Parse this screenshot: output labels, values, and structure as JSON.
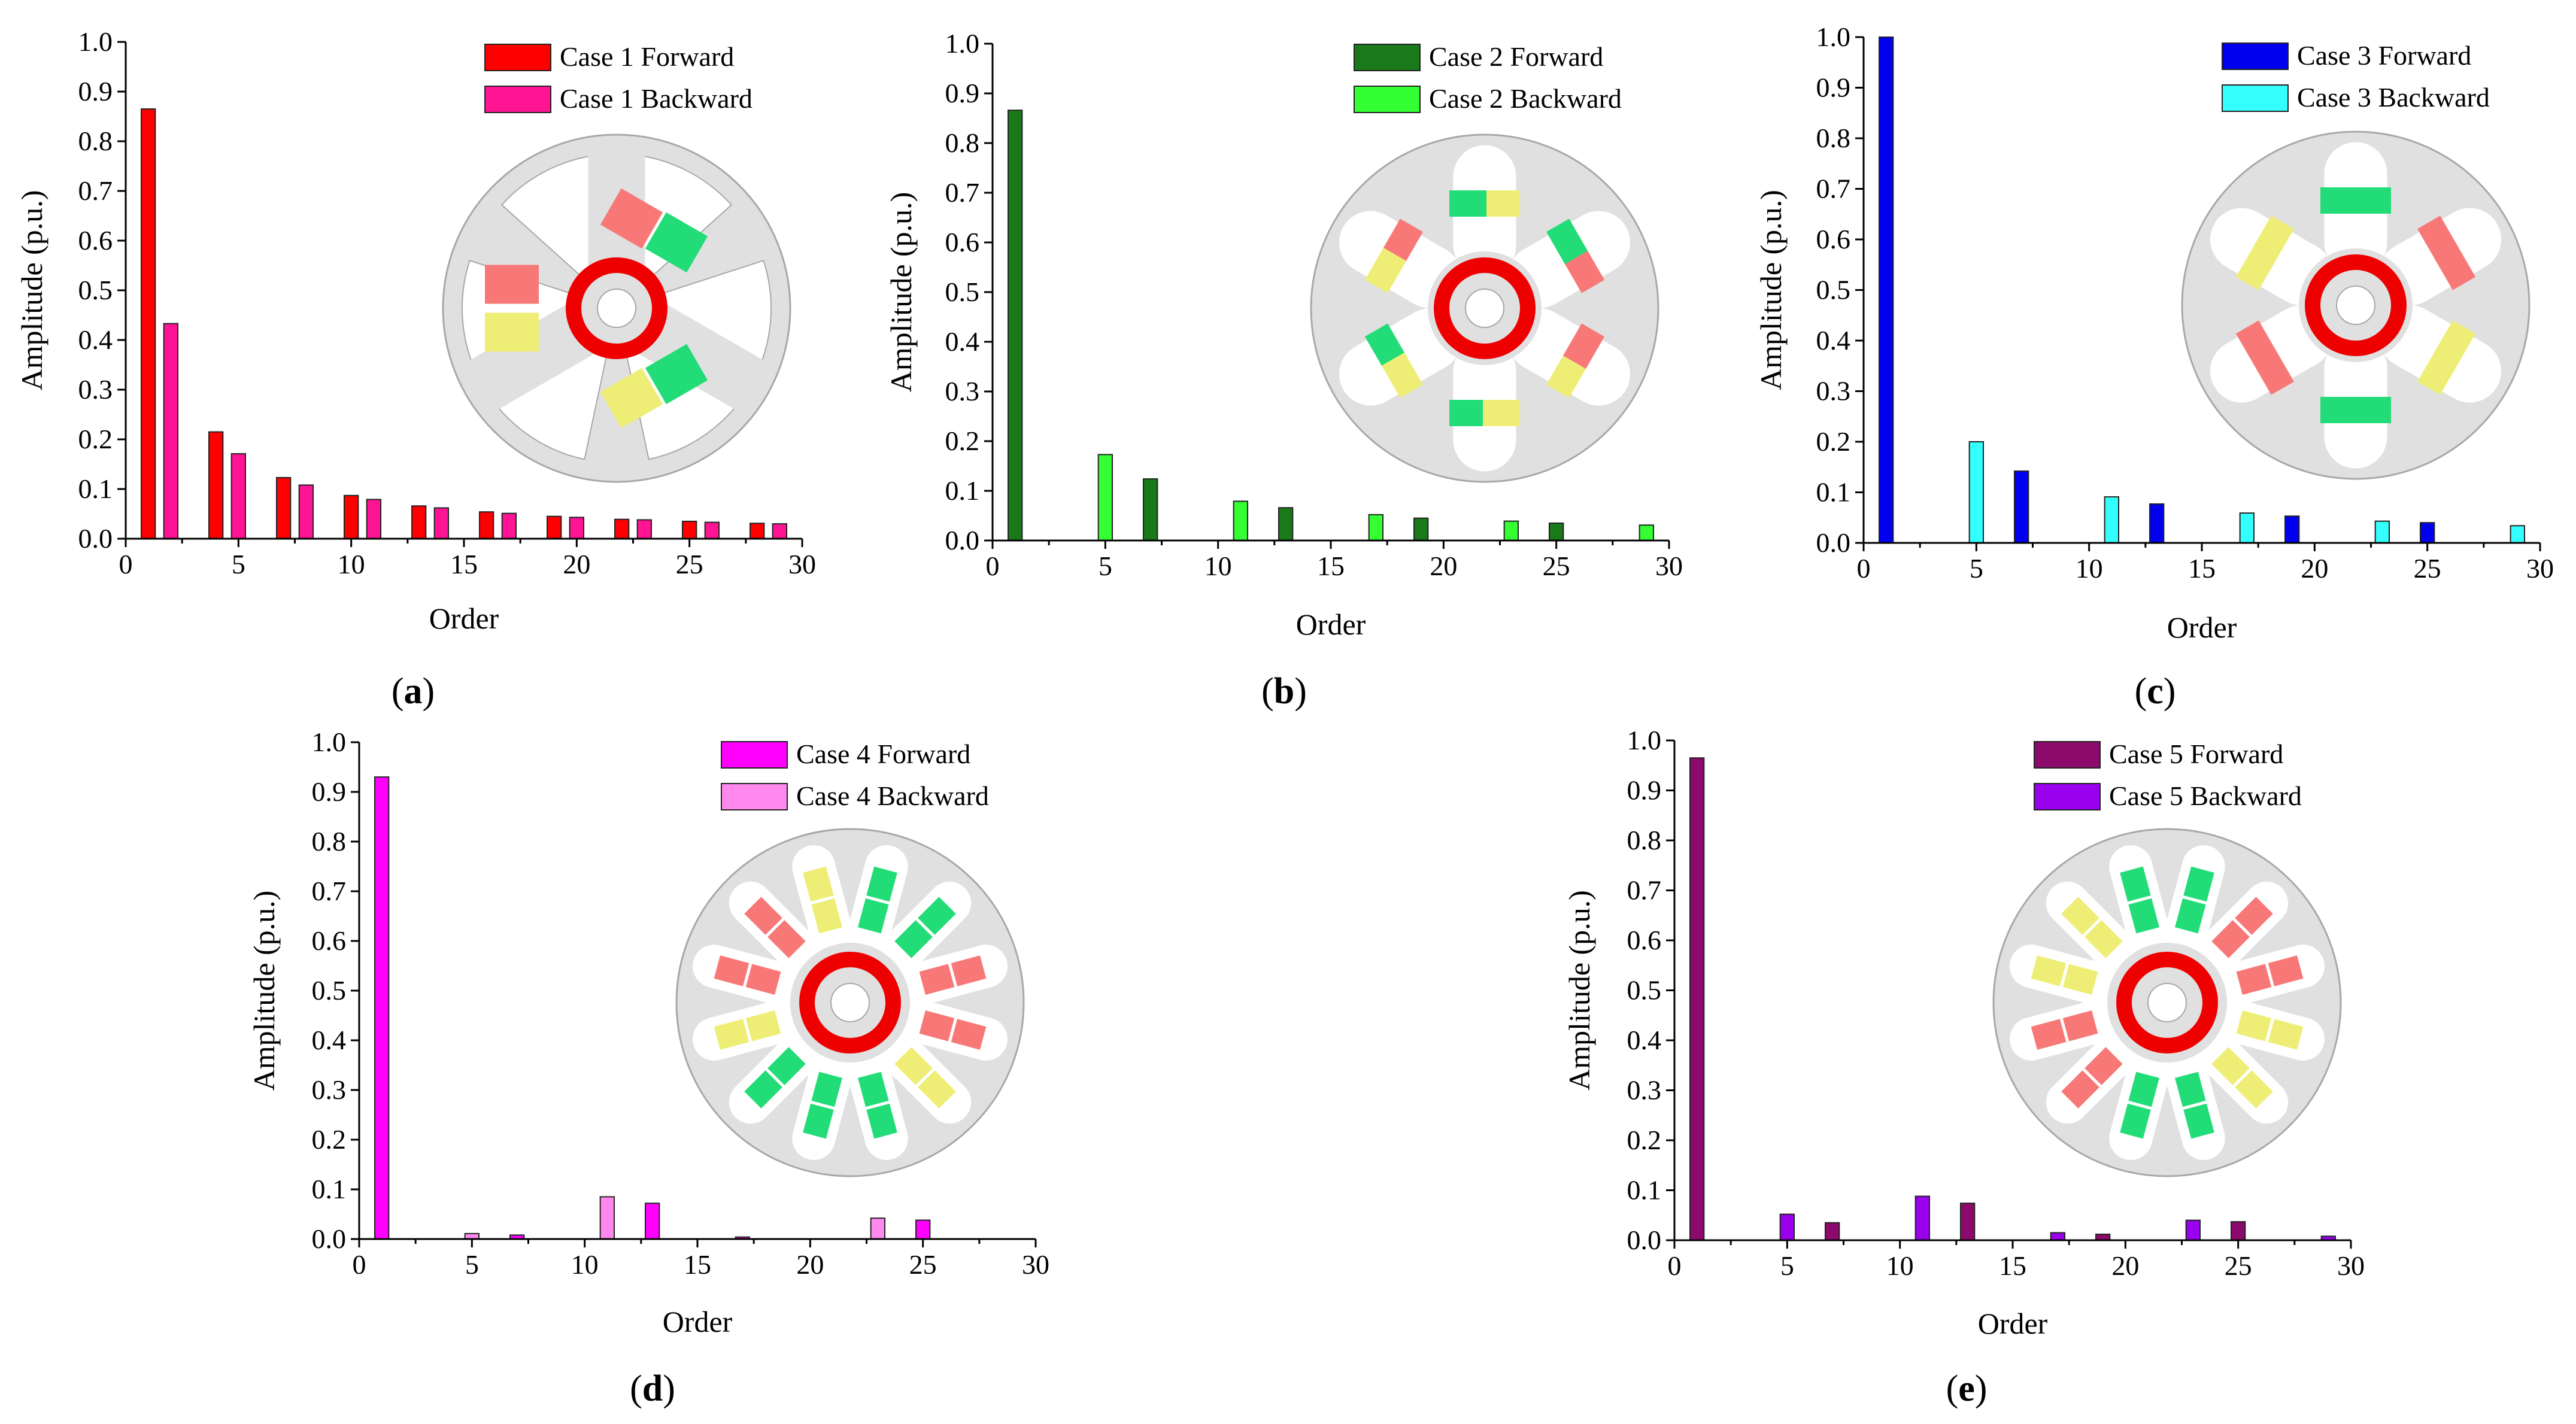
{
  "chart_data": [
    {
      "type": "bar",
      "id": "a",
      "sub_label": "a",
      "xlabel": "Order",
      "ylabel": "Amplitude (p.u.)",
      "xlim": [
        0,
        30
      ],
      "ylim": [
        0,
        1.0
      ],
      "xticks": [
        "0",
        "5",
        "10",
        "15",
        "20",
        "25",
        "30"
      ],
      "yticks": [
        "0.0",
        "0.1",
        "0.2",
        "0.3",
        "0.4",
        "0.5",
        "0.6",
        "0.7",
        "0.8",
        "0.9",
        "1.0"
      ],
      "series": [
        {
          "name": "Case 1 Forward",
          "color": "#FF0000",
          "x": [
            1,
            4,
            7,
            10,
            13,
            16,
            19,
            22,
            25,
            28
          ],
          "values": [
            0.865,
            0.215,
            0.123,
            0.087,
            0.066,
            0.054,
            0.045,
            0.039,
            0.035,
            0.031
          ]
        },
        {
          "name": "Case 1 Backward",
          "color": "#FF1493",
          "x": [
            2,
            5,
            8,
            11,
            14,
            17,
            20,
            23,
            26,
            29
          ],
          "values": [
            0.433,
            0.171,
            0.108,
            0.079,
            0.062,
            0.051,
            0.043,
            0.038,
            0.033,
            0.03
          ]
        }
      ],
      "motor": "a"
    },
    {
      "type": "bar",
      "id": "b",
      "sub_label": "b",
      "xlabel": "Order",
      "ylabel": "Amplitude (p.u.)",
      "xlim": [
        0,
        30
      ],
      "ylim": [
        0,
        1.0
      ],
      "xticks": [
        "0",
        "5",
        "10",
        "15",
        "20",
        "25",
        "30"
      ],
      "yticks": [
        "0.0",
        "0.1",
        "0.2",
        "0.3",
        "0.4",
        "0.5",
        "0.6",
        "0.7",
        "0.8",
        "0.9",
        "1.0"
      ],
      "series": [
        {
          "name": "Case 2 Forward",
          "color": "#1A7A1A",
          "x": [
            1,
            7,
            13,
            19,
            25
          ],
          "values": [
            0.866,
            0.124,
            0.066,
            0.045,
            0.035
          ]
        },
        {
          "name": "Case 2 Backward",
          "color": "#33FF33",
          "x": [
            5,
            11,
            17,
            23,
            29
          ],
          "values": [
            0.173,
            0.079,
            0.052,
            0.039,
            0.031
          ]
        }
      ],
      "motor": "b"
    },
    {
      "type": "bar",
      "id": "c",
      "sub_label": "c",
      "xlabel": "Order",
      "ylabel": "Amplitude (p.u.)",
      "xlim": [
        0,
        30
      ],
      "ylim": [
        0,
        1.0
      ],
      "xticks": [
        "0",
        "5",
        "10",
        "15",
        "20",
        "25",
        "30"
      ],
      "yticks": [
        "0.0",
        "0.1",
        "0.2",
        "0.3",
        "0.4",
        "0.5",
        "0.6",
        "0.7",
        "0.8",
        "0.9",
        "1.0"
      ],
      "series": [
        {
          "name": "Case 3 Forward",
          "color": "#0000EE",
          "x": [
            1,
            7,
            13,
            19,
            25
          ],
          "values": [
            1.0,
            0.142,
            0.077,
            0.053,
            0.04
          ]
        },
        {
          "name": "Case 3 Backward",
          "color": "#33FFFF",
          "x": [
            5,
            11,
            17,
            23,
            29
          ],
          "values": [
            0.2,
            0.091,
            0.059,
            0.043,
            0.034
          ]
        }
      ],
      "motor": "c"
    },
    {
      "type": "bar",
      "id": "d",
      "sub_label": "d",
      "xlabel": "Order",
      "ylabel": "Amplitude (p.u.)",
      "xlim": [
        0,
        30
      ],
      "ylim": [
        0,
        1.0
      ],
      "xticks": [
        "0",
        "5",
        "10",
        "15",
        "20",
        "25",
        "30"
      ],
      "yticks": [
        "0.0",
        "0.1",
        "0.2",
        "0.3",
        "0.4",
        "0.5",
        "0.6",
        "0.7",
        "0.8",
        "0.9",
        "1.0"
      ],
      "series": [
        {
          "name": "Case 4 Forward",
          "color": "#FF00FF",
          "x": [
            1,
            7,
            13,
            17,
            25
          ],
          "values": [
            0.93,
            0.008,
            0.072,
            0.004,
            0.038
          ]
        },
        {
          "name": "Case 4 Backward",
          "color": "#FF88EE",
          "x": [
            5,
            11,
            23
          ],
          "values": [
            0.011,
            0.085,
            0.042
          ]
        }
      ],
      "motor": "d"
    },
    {
      "type": "bar",
      "id": "e",
      "sub_label": "e",
      "xlabel": "Order",
      "ylabel": "Amplitude (p.u.)",
      "xlim": [
        0,
        30
      ],
      "ylim": [
        0,
        1.0
      ],
      "xticks": [
        "0",
        "5",
        "10",
        "15",
        "20",
        "25",
        "30"
      ],
      "yticks": [
        "0.0",
        "0.1",
        "0.2",
        "0.3",
        "0.4",
        "0.5",
        "0.6",
        "0.7",
        "0.8",
        "0.9",
        "1.0"
      ],
      "series": [
        {
          "name": "Case 5 Forward",
          "color": "#8B0A6B",
          "x": [
            1,
            7,
            13,
            19,
            25
          ],
          "values": [
            0.965,
            0.035,
            0.074,
            0.012,
            0.037
          ]
        },
        {
          "name": "Case 5 Backward",
          "color": "#9900EE",
          "x": [
            5,
            11,
            17,
            23,
            29
          ],
          "values": [
            0.052,
            0.088,
            0.015,
            0.04,
            0.008
          ]
        }
      ],
      "motor": "e"
    }
  ],
  "colors": {
    "stator": "#E0E0E0",
    "stator_edge": "#A8A8A8",
    "coil_red": "#F87878",
    "coil_green": "#22DD77",
    "coil_yellow": "#EEEE77",
    "rotor": "#EE0000"
  }
}
